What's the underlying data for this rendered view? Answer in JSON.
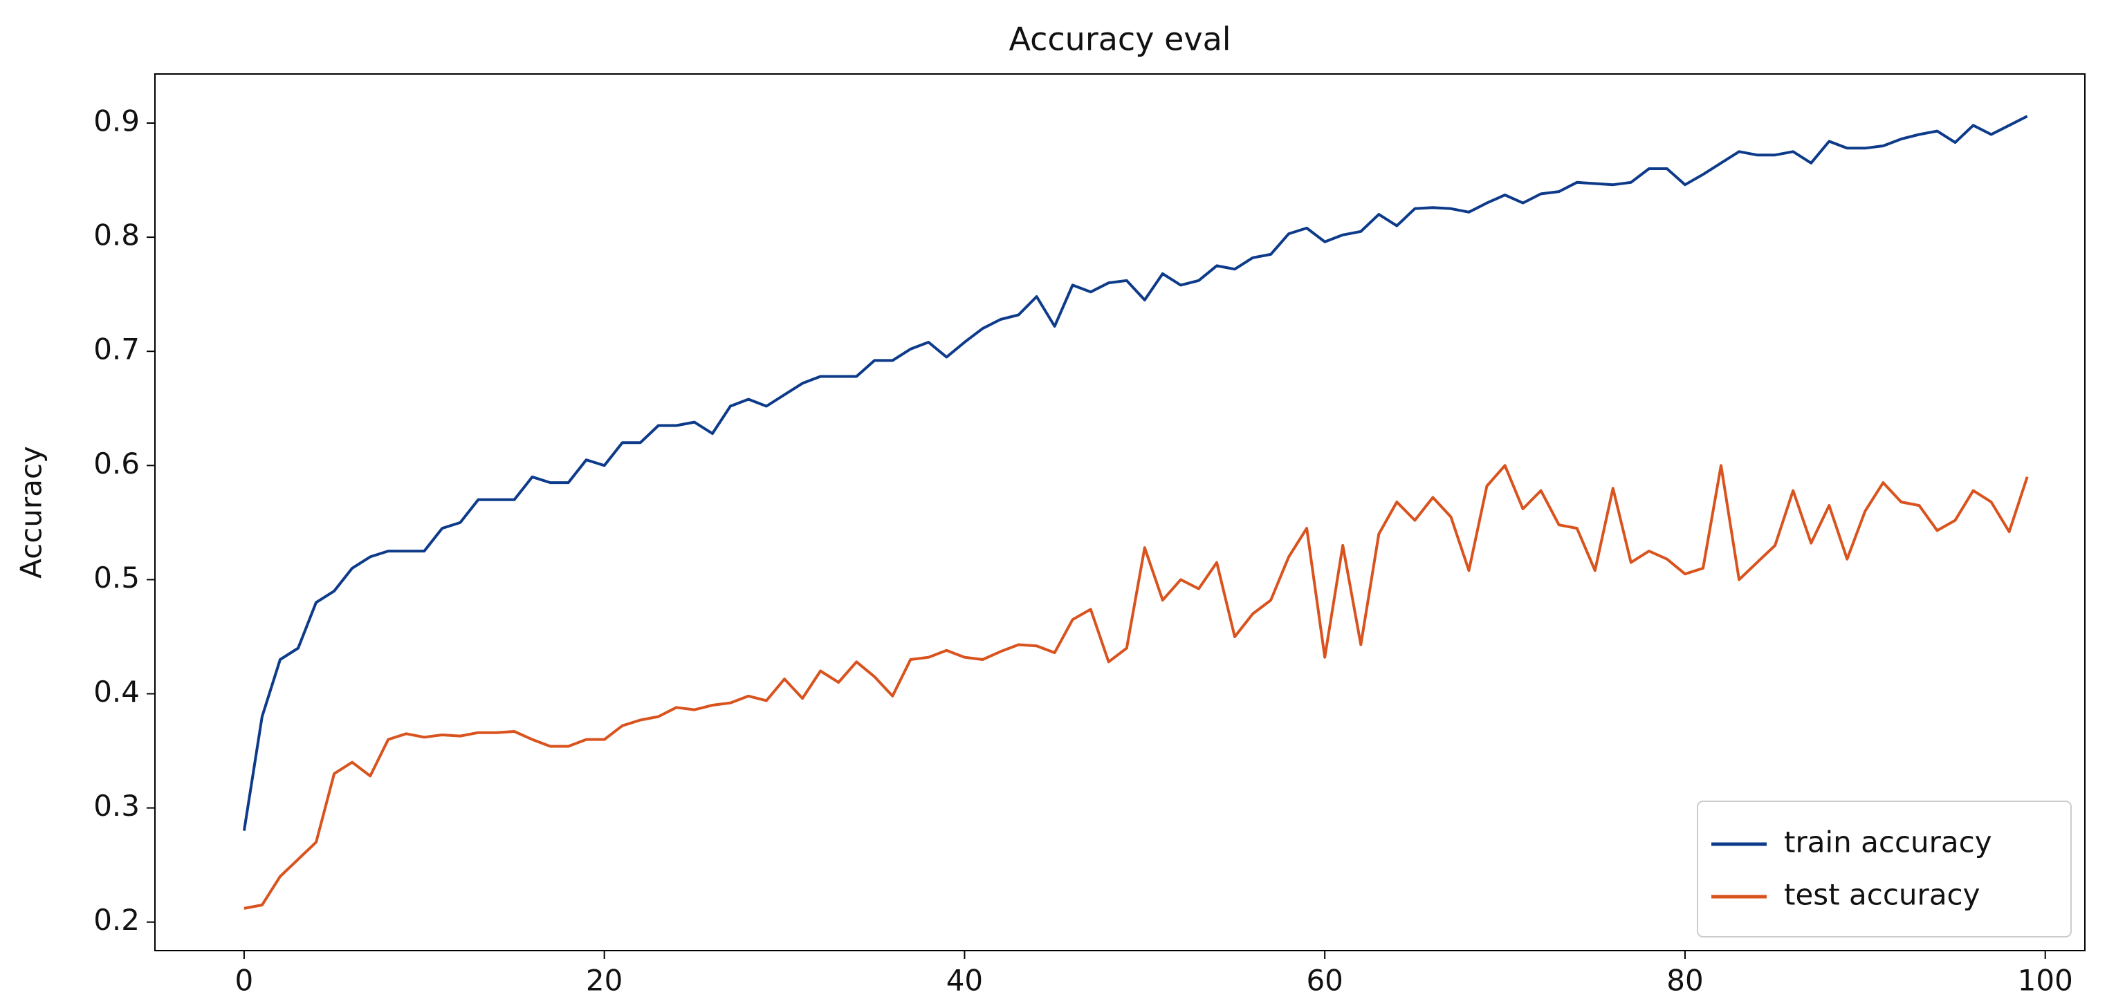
{
  "chart_data": {
    "type": "line",
    "title": "Accuracy eval",
    "ylabel": "Accuracy",
    "x": [
      0,
      1,
      2,
      3,
      4,
      5,
      6,
      7,
      8,
      9,
      10,
      11,
      12,
      13,
      14,
      15,
      16,
      17,
      18,
      19,
      20,
      21,
      22,
      23,
      24,
      25,
      26,
      27,
      28,
      29,
      30,
      31,
      32,
      33,
      34,
      35,
      36,
      37,
      38,
      39,
      40,
      41,
      42,
      43,
      44,
      45,
      46,
      47,
      48,
      49,
      50,
      51,
      52,
      53,
      54,
      55,
      56,
      57,
      58,
      59,
      60,
      61,
      62,
      63,
      64,
      65,
      66,
      67,
      68,
      69,
      70,
      71,
      72,
      73,
      74,
      75,
      76,
      77,
      78,
      79,
      80,
      81,
      82,
      83,
      84,
      85,
      86,
      87,
      88,
      89,
      90,
      91,
      92,
      93,
      94,
      95,
      96,
      97,
      98,
      99
    ],
    "series": [
      {
        "name": "train accuracy",
        "color": "#0d3b8a",
        "values": [
          0.28,
          0.38,
          0.43,
          0.44,
          0.48,
          0.49,
          0.51,
          0.52,
          0.525,
          0.525,
          0.525,
          0.545,
          0.55,
          0.57,
          0.57,
          0.57,
          0.59,
          0.585,
          0.585,
          0.605,
          0.6,
          0.62,
          0.62,
          0.635,
          0.635,
          0.638,
          0.628,
          0.652,
          0.658,
          0.652,
          0.662,
          0.672,
          0.678,
          0.678,
          0.678,
          0.692,
          0.692,
          0.702,
          0.708,
          0.695,
          0.708,
          0.72,
          0.728,
          0.732,
          0.748,
          0.722,
          0.758,
          0.752,
          0.76,
          0.762,
          0.745,
          0.768,
          0.758,
          0.762,
          0.775,
          0.772,
          0.782,
          0.785,
          0.803,
          0.808,
          0.796,
          0.802,
          0.805,
          0.82,
          0.81,
          0.825,
          0.826,
          0.825,
          0.822,
          0.83,
          0.837,
          0.83,
          0.838,
          0.84,
          0.848,
          0.847,
          0.846,
          0.848,
          0.86,
          0.86,
          0.846,
          0.855,
          0.865,
          0.875,
          0.872,
          0.872,
          0.875,
          0.865,
          0.884,
          0.878,
          0.878,
          0.88,
          0.886,
          0.89,
          0.893,
          0.883,
          0.898,
          0.89,
          0.898,
          0.906
        ]
      },
      {
        "name": "test accuracy",
        "color": "#d9531e",
        "values": [
          0.212,
          0.215,
          0.24,
          0.255,
          0.27,
          0.33,
          0.34,
          0.328,
          0.36,
          0.365,
          0.362,
          0.364,
          0.363,
          0.366,
          0.366,
          0.367,
          0.36,
          0.354,
          0.354,
          0.36,
          0.36,
          0.372,
          0.377,
          0.38,
          0.388,
          0.386,
          0.39,
          0.392,
          0.398,
          0.394,
          0.413,
          0.396,
          0.42,
          0.41,
          0.428,
          0.415,
          0.398,
          0.43,
          0.432,
          0.438,
          0.432,
          0.43,
          0.437,
          0.443,
          0.442,
          0.436,
          0.465,
          0.474,
          0.428,
          0.44,
          0.528,
          0.482,
          0.5,
          0.492,
          0.515,
          0.45,
          0.47,
          0.482,
          0.52,
          0.545,
          0.432,
          0.53,
          0.443,
          0.54,
          0.568,
          0.552,
          0.572,
          0.555,
          0.508,
          0.582,
          0.6,
          0.562,
          0.578,
          0.548,
          0.545,
          0.508,
          0.58,
          0.515,
          0.525,
          0.518,
          0.505,
          0.51,
          0.6,
          0.5,
          0.515,
          0.53,
          0.578,
          0.532,
          0.565,
          0.518,
          0.56,
          0.585,
          0.568,
          0.565,
          0.543,
          0.552,
          0.578,
          0.568,
          0.542,
          0.59
        ]
      }
    ],
    "xlim": [
      -4.95,
      102.2
    ],
    "xticks": [
      0,
      20,
      40,
      60,
      80,
      100
    ],
    "ylim": [
      0.175,
      0.943
    ],
    "yticks": [
      0.2,
      0.3,
      0.4,
      0.5,
      0.6,
      0.7,
      0.8,
      0.9
    ],
    "legend": "lower right",
    "grid": false
  }
}
